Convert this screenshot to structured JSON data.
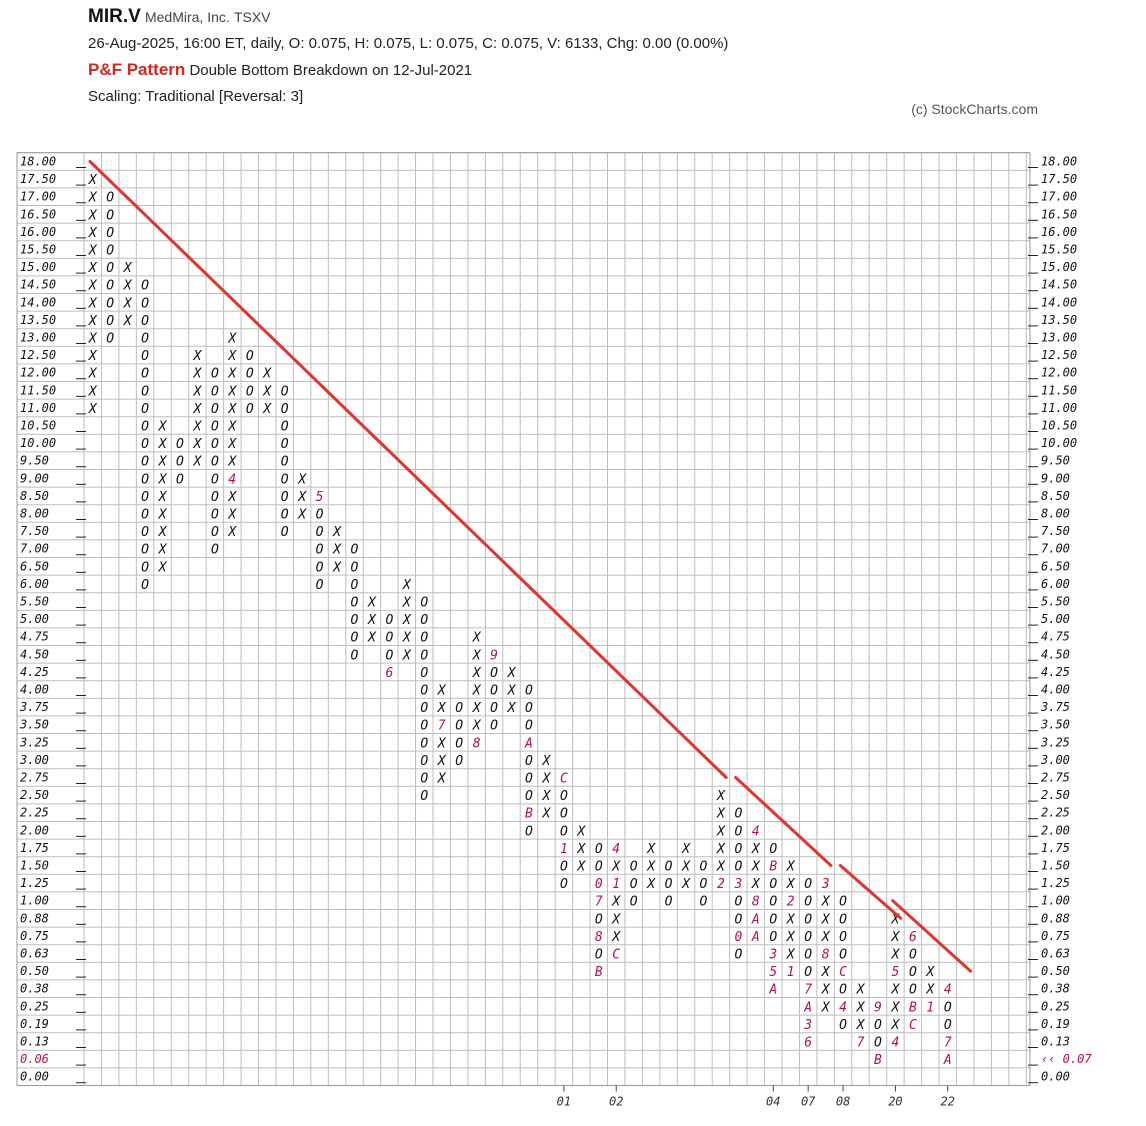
{
  "header": {
    "symbol": "MIR.V",
    "company": "MedMira, Inc.",
    "exchange": "TSXV",
    "quote_line": "26-Aug-2025, 16:00 ET, daily, O: 0.075, H: 0.075, L: 0.075, C: 0.075, V: 6133, Chg: 0.00 (0.00%)",
    "pattern_label": "P&F Pattern",
    "pattern_text": "Double Bottom Breakdown on 12-Jul-2021",
    "scaling": "Scaling: Traditional [Reversal: 3]",
    "copyright": "(c) StockCharts.com"
  },
  "colors": {
    "trendline": "#e0352b",
    "month_marker": "#b3163a",
    "grid": "#bdbdbd",
    "last_price": "#b3163a"
  },
  "chart_data": {
    "type": "point-and-figure",
    "box_levels": [
      "18.00",
      "17.50",
      "17.00",
      "16.50",
      "16.00",
      "15.50",
      "15.00",
      "14.50",
      "14.00",
      "13.50",
      "13.00",
      "12.50",
      "12.00",
      "11.50",
      "11.00",
      "10.50",
      "10.00",
      "9.50",
      "9.00",
      "8.50",
      "8.00",
      "7.50",
      "7.00",
      "6.50",
      "6.00",
      "5.50",
      "5.00",
      "4.75",
      "4.50",
      "4.25",
      "4.00",
      "3.75",
      "3.50",
      "3.25",
      "3.00",
      "2.75",
      "2.50",
      "2.25",
      "2.00",
      "1.75",
      "1.50",
      "1.25",
      "1.00",
      "0.88",
      "0.75",
      "0.63",
      "0.50",
      "0.38",
      "0.25",
      "0.19",
      "0.13",
      "0.06",
      "0.00"
    ],
    "last_price_left": "0.06",
    "last_price_right": "‹‹ 0.07",
    "columns": [
      {
        "t": "X",
        "top": "17.50",
        "bottom": "11.00",
        "marks": {}
      },
      {
        "t": "O",
        "top": "17.00",
        "bottom": "13.00",
        "marks": {}
      },
      {
        "t": "X",
        "top": "15.00",
        "bottom": "13.50",
        "marks": {}
      },
      {
        "t": "O",
        "top": "14.50",
        "bottom": "6.00",
        "marks": {}
      },
      {
        "t": "X",
        "top": "10.50",
        "bottom": "6.50",
        "marks": {}
      },
      {
        "t": "O",
        "top": "10.00",
        "bottom": "9.00",
        "marks": {}
      },
      {
        "t": "X",
        "top": "12.50",
        "bottom": "9.50",
        "marks": {}
      },
      {
        "t": "O",
        "top": "12.00",
        "bottom": "7.00",
        "marks": {}
      },
      {
        "t": "X",
        "top": "13.00",
        "bottom": "7.50",
        "marks": {
          "9.00": "4"
        }
      },
      {
        "t": "O",
        "top": "12.50",
        "bottom": "11.00",
        "marks": {}
      },
      {
        "t": "X",
        "top": "12.00",
        "bottom": "11.00",
        "marks": {}
      },
      {
        "t": "O",
        "top": "11.50",
        "bottom": "7.50",
        "marks": {}
      },
      {
        "t": "X",
        "top": "9.00",
        "bottom": "8.00",
        "marks": {}
      },
      {
        "t": "O",
        "top": "8.50",
        "bottom": "6.00",
        "marks": {
          "8.50": "5"
        }
      },
      {
        "t": "X",
        "top": "7.50",
        "bottom": "6.50",
        "marks": {}
      },
      {
        "t": "O",
        "top": "7.00",
        "bottom": "4.50",
        "marks": {}
      },
      {
        "t": "X",
        "top": "5.50",
        "bottom": "4.75",
        "marks": {}
      },
      {
        "t": "O",
        "top": "5.00",
        "bottom": "4.25",
        "marks": {
          "4.25": "6"
        }
      },
      {
        "t": "X",
        "top": "6.00",
        "bottom": "4.50",
        "marks": {}
      },
      {
        "t": "O",
        "top": "5.50",
        "bottom": "2.50",
        "marks": {}
      },
      {
        "t": "X",
        "top": "4.00",
        "bottom": "2.75",
        "marks": {
          "3.50": "7"
        }
      },
      {
        "t": "O",
        "top": "3.75",
        "bottom": "3.00",
        "marks": {}
      },
      {
        "t": "X",
        "top": "4.75",
        "bottom": "3.25",
        "marks": {
          "3.25": "8"
        }
      },
      {
        "t": "O",
        "top": "4.50",
        "bottom": "3.50",
        "marks": {
          "4.50": "9"
        }
      },
      {
        "t": "X",
        "top": "4.25",
        "bottom": "3.75",
        "marks": {}
      },
      {
        "t": "O",
        "top": "4.00",
        "bottom": "2.00",
        "marks": {
          "3.25": "A",
          "2.25": "B"
        }
      },
      {
        "t": "X",
        "top": "3.00",
        "bottom": "2.25",
        "marks": {}
      },
      {
        "t": "O",
        "top": "2.75",
        "bottom": "1.25",
        "marks": {
          "2.75": "C",
          "1.75": "1"
        }
      },
      {
        "t": "X",
        "top": "2.00",
        "bottom": "1.50",
        "marks": {}
      },
      {
        "t": "O",
        "top": "1.75",
        "bottom": "0.50",
        "marks": {
          "1.25": "0",
          "1.00": "7",
          "0.75": "8",
          "0.50": "B"
        }
      },
      {
        "t": "X",
        "top": "1.75",
        "bottom": "0.63",
        "marks": {
          "1.75": "4",
          "1.25": "1",
          "0.63": "C"
        }
      },
      {
        "t": "O",
        "top": "1.50",
        "bottom": "1.00",
        "marks": {}
      },
      {
        "t": "X",
        "top": "1.75",
        "bottom": "1.25",
        "marks": {}
      },
      {
        "t": "O",
        "top": "1.50",
        "bottom": "1.00",
        "marks": {}
      },
      {
        "t": "X",
        "top": "1.75",
        "bottom": "1.25",
        "marks": {}
      },
      {
        "t": "O",
        "top": "1.50",
        "bottom": "1.00",
        "marks": {}
      },
      {
        "t": "X",
        "top": "2.50",
        "bottom": "1.25",
        "marks": {
          "1.25": "2"
        }
      },
      {
        "t": "O",
        "top": "2.25",
        "bottom": "0.63",
        "marks": {
          "1.25": "3",
          "0.75": "0"
        }
      },
      {
        "t": "X",
        "top": "2.00",
        "bottom": "0.75",
        "marks": {
          "2.00": "4",
          "1.00": "8",
          "0.88": "A",
          "0.75": "A"
        }
      },
      {
        "t": "O",
        "top": "1.75",
        "bottom": "0.38",
        "marks": {
          "1.50": "B",
          "0.63": "3",
          "0.50": "5",
          "0.38": "A"
        }
      },
      {
        "t": "X",
        "top": "1.50",
        "bottom": "0.50",
        "marks": {
          "1.00": "2",
          "0.50": "1"
        }
      },
      {
        "t": "O",
        "top": "1.25",
        "bottom": "0.13",
        "marks": {
          "0.38": "7",
          "0.25": "A",
          "0.19": "3",
          "0.13": "6"
        }
      },
      {
        "t": "X",
        "top": "1.25",
        "bottom": "0.25",
        "marks": {
          "1.25": "3",
          "0.63": "8"
        }
      },
      {
        "t": "O",
        "top": "1.00",
        "bottom": "0.19",
        "marks": {
          "0.50": "C",
          "0.25": "4"
        }
      },
      {
        "t": "X",
        "top": "0.38",
        "bottom": "0.13",
        "marks": {
          "0.13": "7"
        }
      },
      {
        "t": "O",
        "top": "0.25",
        "bottom": "0.06",
        "marks": {
          "0.25": "9",
          "0.06": "B"
        }
      },
      {
        "t": "X",
        "top": "0.88",
        "bottom": "0.13",
        "marks": {
          "0.50": "5",
          "0.13": "4"
        }
      },
      {
        "t": "O",
        "top": "0.75",
        "bottom": "0.19",
        "marks": {
          "0.75": "6",
          "0.25": "B",
          "0.19": "C"
        }
      },
      {
        "t": "X",
        "top": "0.50",
        "bottom": "0.25",
        "marks": {
          "0.25": "1"
        }
      },
      {
        "t": "O",
        "top": "0.38",
        "bottom": "0.06",
        "marks": {
          "0.38": "4",
          "0.13": "7",
          "0.06": "A"
        }
      }
    ],
    "year_labels": [
      {
        "col": 27,
        "label": "01"
      },
      {
        "col": 30,
        "label": "02"
      },
      {
        "col": 39,
        "label": "04"
      },
      {
        "col": 41,
        "label": "07"
      },
      {
        "col": 43,
        "label": "08"
      },
      {
        "col": 46,
        "label": "20"
      },
      {
        "col": 49,
        "label": "22"
      }
    ],
    "trendlines": [
      {
        "from": {
          "col": 0,
          "box": "18.00"
        },
        "to": {
          "col": 36,
          "box": "2.75"
        }
      },
      {
        "from": {
          "col": 37,
          "box": "2.75"
        },
        "to": {
          "col": 42,
          "box": "1.50"
        }
      },
      {
        "from": {
          "col": 43,
          "box": "1.50"
        },
        "to": {
          "col": 46,
          "box": "0.88"
        }
      },
      {
        "from": {
          "col": 46,
          "box": "1.00"
        },
        "to": {
          "col": 50,
          "box": "0.50"
        }
      }
    ]
  }
}
